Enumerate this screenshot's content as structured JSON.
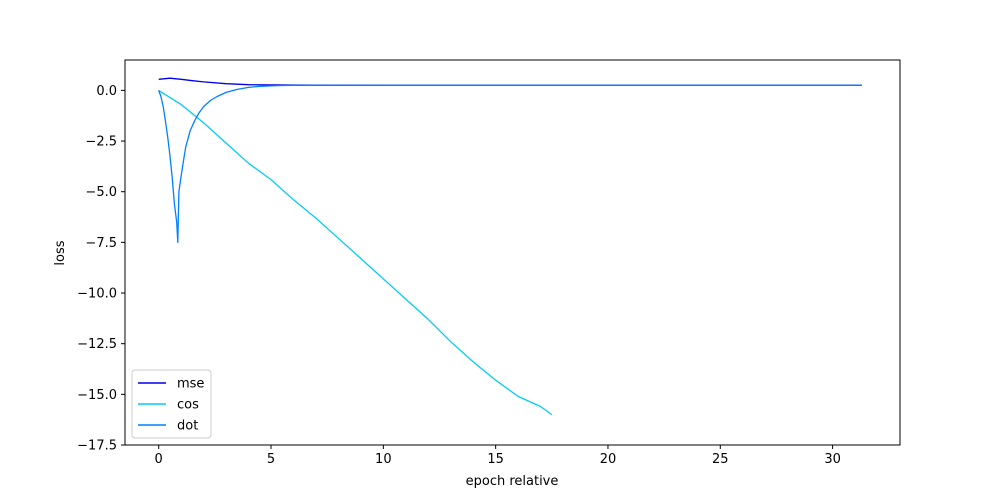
{
  "chart_data": {
    "type": "line",
    "xlabel": "epoch relative",
    "ylabel": "loss",
    "xlim": [
      -1.5,
      33
    ],
    "ylim": [
      -17.5,
      1.5
    ],
    "xticks": [
      0,
      5,
      10,
      15,
      20,
      25,
      30
    ],
    "yticks": [
      0.0,
      -2.5,
      -5.0,
      -7.5,
      -10.0,
      -12.5,
      -15.0,
      -17.5
    ],
    "xtick_labels": [
      "0",
      "5",
      "10",
      "15",
      "20",
      "25",
      "30"
    ],
    "ytick_labels": [
      "0.0",
      "−2.5",
      "−5.0",
      "−7.5",
      "−10.0",
      "−12.5",
      "−15.0",
      "−17.5"
    ],
    "legend_position": "lower-left",
    "grid": false,
    "series": [
      {
        "name": "mse",
        "color": "#0000ee",
        "x": [
          0,
          0.5,
          1,
          1.5,
          2,
          3,
          4,
          5,
          7,
          10,
          15,
          20,
          25,
          31.3
        ],
        "y": [
          0.55,
          0.6,
          0.55,
          0.48,
          0.42,
          0.33,
          0.28,
          0.27,
          0.26,
          0.25,
          0.25,
          0.25,
          0.25,
          0.25
        ]
      },
      {
        "name": "cos",
        "color": "#00ccff",
        "x": [
          0,
          1,
          2,
          3,
          4,
          5,
          6,
          7,
          8,
          9,
          10,
          11,
          12,
          13,
          14,
          15,
          16,
          17,
          17.5
        ],
        "y": [
          0.0,
          -0.7,
          -1.6,
          -2.6,
          -3.6,
          -4.4,
          -5.4,
          -6.3,
          -7.3,
          -8.3,
          -9.3,
          -10.3,
          -11.3,
          -12.4,
          -13.4,
          -14.3,
          -15.1,
          -15.6,
          -16.0
        ]
      },
      {
        "name": "dot",
        "color": "#0080ff",
        "x": [
          0,
          0.1,
          0.2,
          0.3,
          0.4,
          0.5,
          0.6,
          0.7,
          0.8,
          0.85,
          0.9,
          1.0,
          1.1,
          1.2,
          1.4,
          1.6,
          1.8,
          2.0,
          2.3,
          2.6,
          3.0,
          3.5,
          4.0,
          4.5,
          5.0,
          5.5,
          6.0,
          8,
          10,
          15,
          20,
          25,
          31.3
        ],
        "y": [
          0.0,
          -0.3,
          -0.8,
          -1.5,
          -2.3,
          -3.2,
          -4.3,
          -5.6,
          -6.5,
          -7.5,
          -5.0,
          -4.2,
          -3.5,
          -2.8,
          -2.0,
          -1.5,
          -1.1,
          -0.8,
          -0.5,
          -0.3,
          -0.1,
          0.05,
          0.15,
          0.2,
          0.22,
          0.24,
          0.25,
          0.25,
          0.25,
          0.25,
          0.25,
          0.25,
          0.25
        ]
      }
    ]
  }
}
